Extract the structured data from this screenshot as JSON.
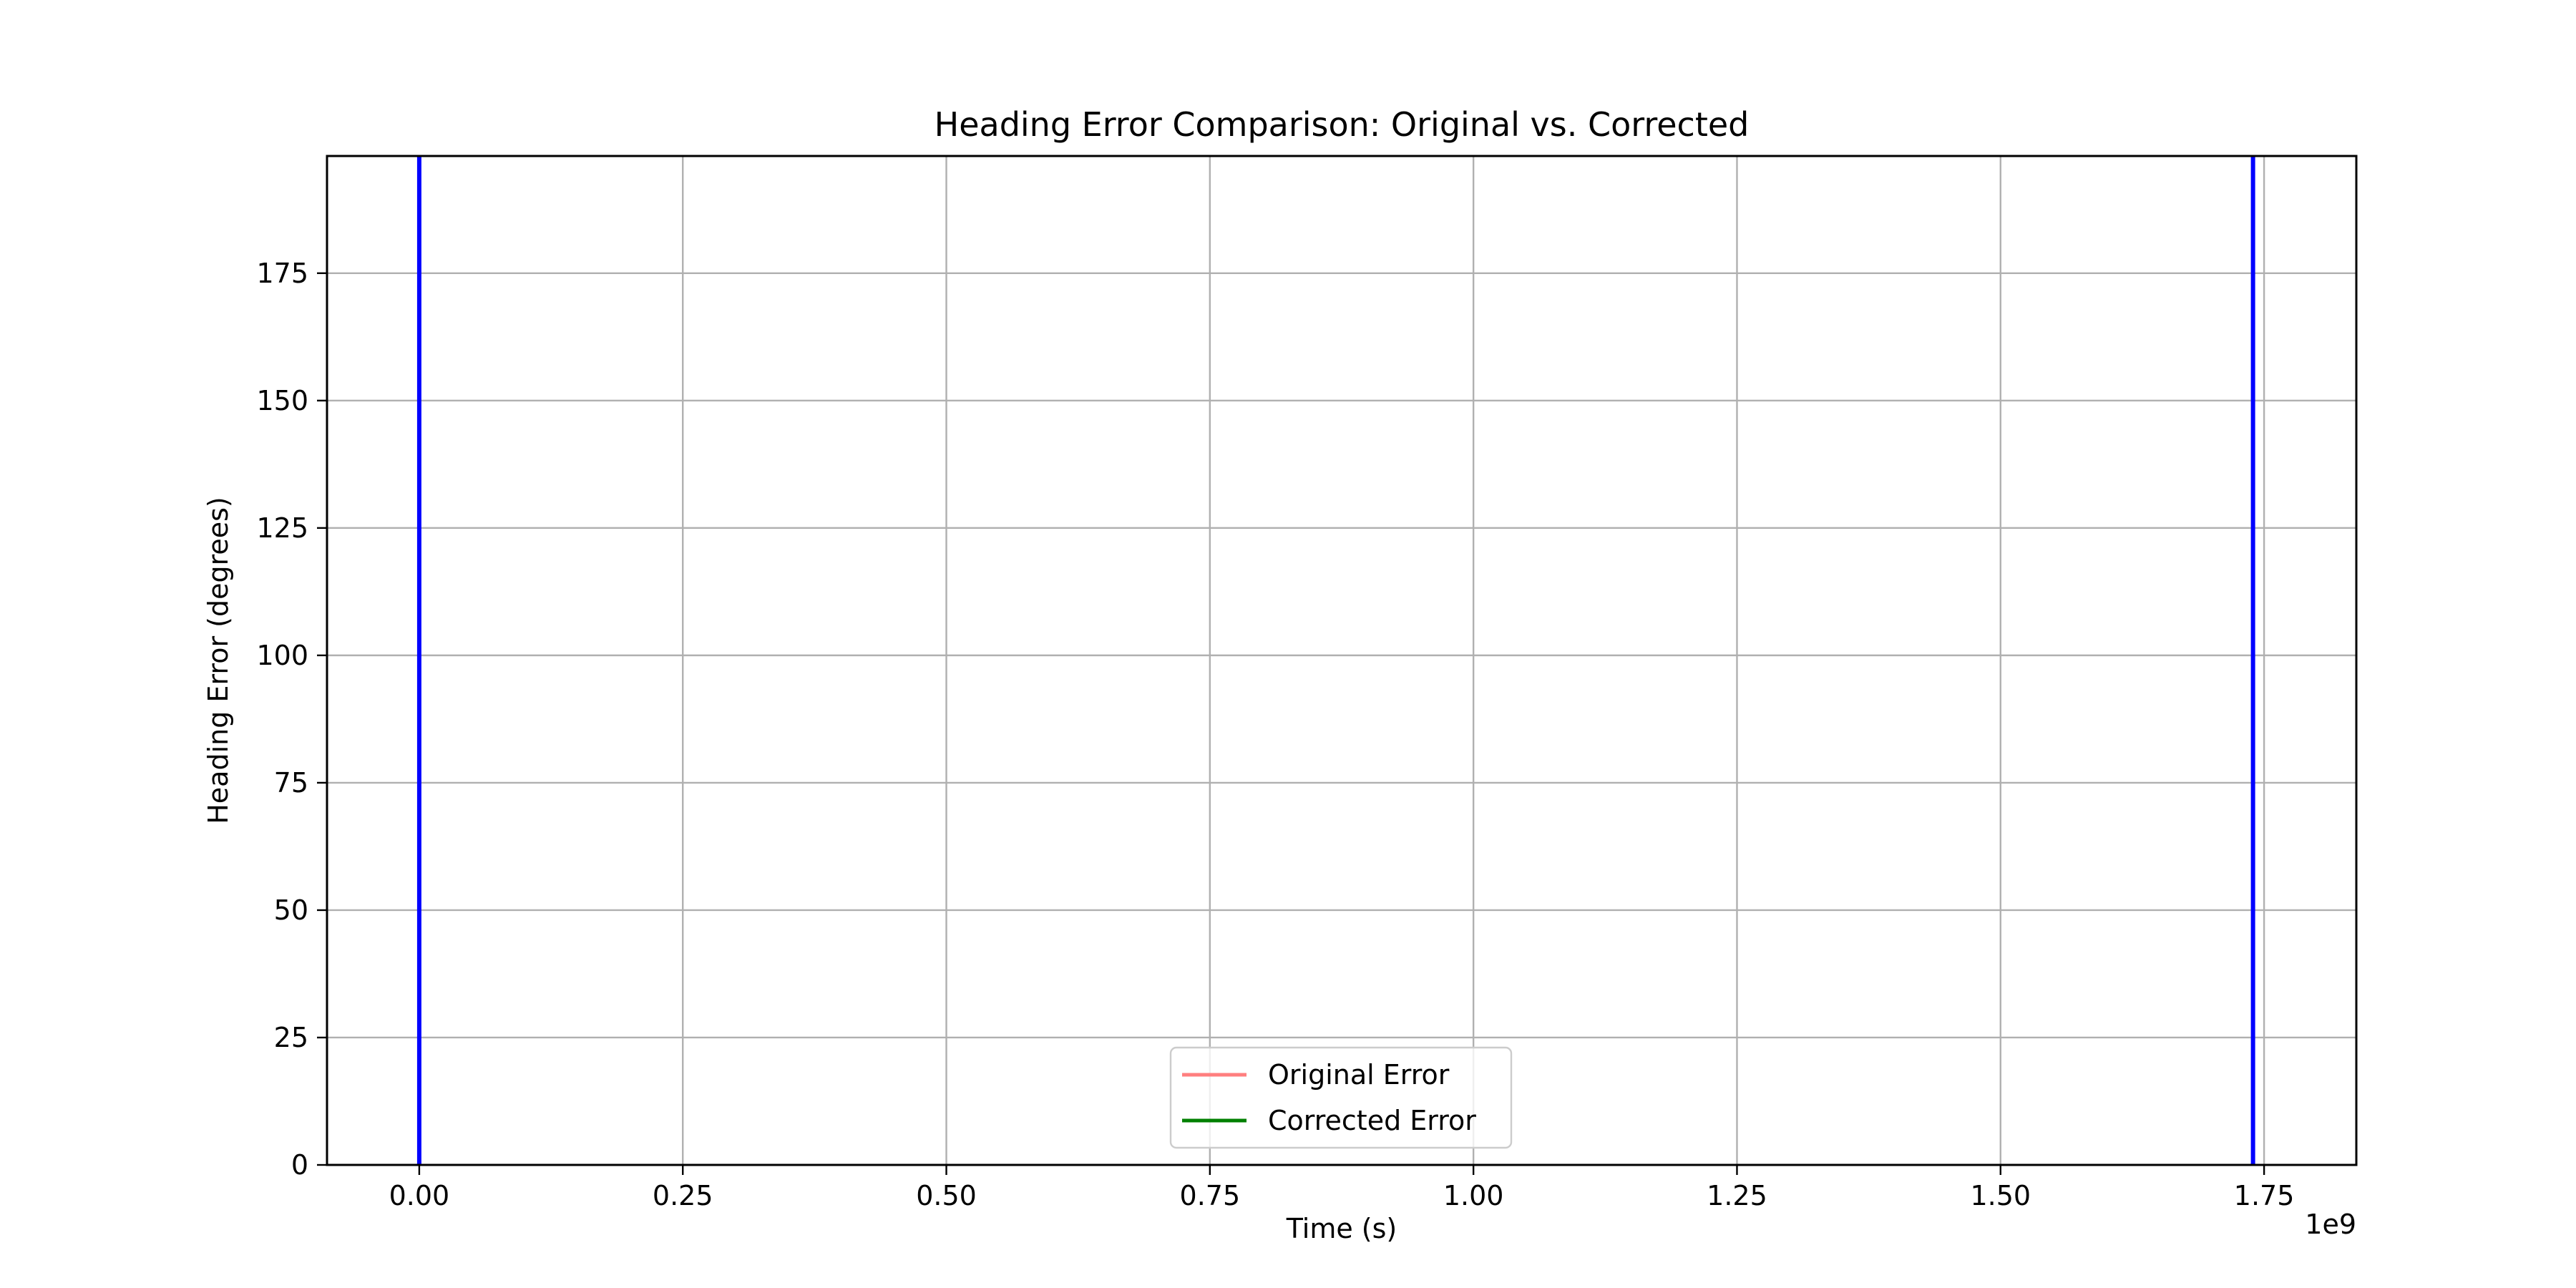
{
  "chart_data": {
    "type": "line",
    "title": "Heading Error Comparison: Original vs. Corrected",
    "xlabel": "Time (s)",
    "ylabel": "Heading Error (degrees)",
    "x_offset_label": "1e9",
    "xlim": [
      -0.0875,
      1.8375
    ],
    "ylim": [
      0,
      198
    ],
    "x_ticks": [
      0.0,
      0.25,
      0.5,
      0.75,
      1.0,
      1.25,
      1.5,
      1.75
    ],
    "x_tick_labels": [
      "0.00",
      "0.25",
      "0.50",
      "0.75",
      "1.00",
      "1.25",
      "1.50",
      "1.75"
    ],
    "y_ticks": [
      0,
      25,
      50,
      75,
      100,
      125,
      150,
      175
    ],
    "y_tick_labels": [
      "0",
      "25",
      "50",
      "75",
      "100",
      "125",
      "150",
      "175"
    ],
    "grid": true,
    "legend_position": "lower center",
    "series": [
      {
        "name": "Original Error",
        "color": "#ff7f7f",
        "x": [],
        "y": []
      },
      {
        "name": "Corrected Error",
        "color": "#008000",
        "x": [],
        "y": []
      }
    ],
    "vertical_lines": [
      {
        "x": 0.0,
        "color": "#0000ff"
      },
      {
        "x": 1.7395,
        "color": "#0000ff"
      }
    ]
  }
}
